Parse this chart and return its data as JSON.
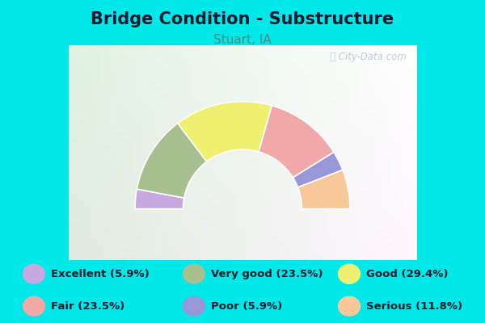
{
  "title": "Bridge Condition - Substructure",
  "subtitle": "Stuart, IA",
  "segments": [
    {
      "label": "Excellent",
      "pct": 5.9,
      "color": "#c8a8e0"
    },
    {
      "label": "Very good",
      "pct": 23.5,
      "color": "#a8c090"
    },
    {
      "label": "Good",
      "pct": 29.4,
      "color": "#f0f070"
    },
    {
      "label": "Fair",
      "pct": 23.5,
      "color": "#f0a8a8"
    },
    {
      "label": "Poor",
      "pct": 5.9,
      "color": "#9898d8"
    },
    {
      "label": "Serious",
      "pct": 11.8,
      "color": "#f8c898"
    }
  ],
  "legend": [
    {
      "label": "Excellent (5.9%)",
      "color": "#c8a8e0"
    },
    {
      "label": "Very good (23.5%)",
      "color": "#a8c090"
    },
    {
      "label": "Good (29.4%)",
      "color": "#f0f070"
    },
    {
      "label": "Fair (23.5%)",
      "color": "#f0a8a8"
    },
    {
      "label": "Poor (5.9%)",
      "color": "#9898d8"
    },
    {
      "label": "Serious (11.8%)",
      "color": "#f8c898"
    }
  ],
  "bg_color": "#00e8e8",
  "chart_panel_color": "#f0f8f0",
  "watermark": "ⓘ City-Data.com",
  "title_fontsize": 15,
  "subtitle_fontsize": 11,
  "outer_r": 1.05,
  "inner_r": 0.58
}
